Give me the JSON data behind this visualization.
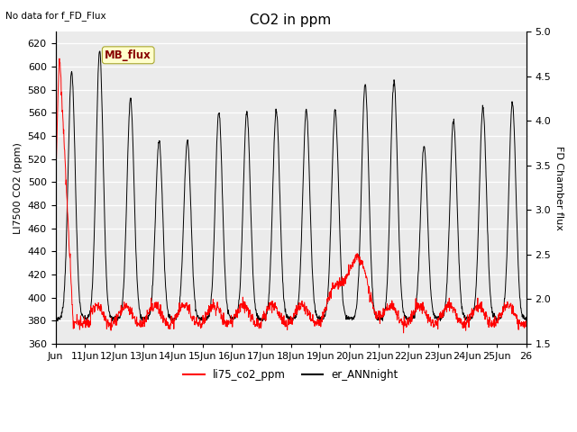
{
  "title": "CO2 in ppm",
  "no_data_text": "No data for f_FD_Flux",
  "ylabel_left": "LI7500 CO2 (ppm)",
  "ylabel_right": "FD Chamber flux",
  "ylim_left": [
    360,
    630
  ],
  "ylim_right": [
    1.5,
    5.0
  ],
  "yticks_left": [
    360,
    380,
    400,
    420,
    440,
    460,
    480,
    500,
    520,
    540,
    560,
    580,
    600,
    620
  ],
  "yticks_right": [
    1.5,
    2.0,
    2.5,
    3.0,
    3.5,
    4.0,
    4.5,
    5.0
  ],
  "xtick_labels": [
    "Jun",
    "11Jun",
    "12Jun",
    "13Jun",
    "14Jun",
    "15Jun",
    "16Jun",
    "17Jun",
    "18Jun",
    "19Jun",
    "20Jun",
    "21Jun",
    "22Jun",
    "23Jun",
    "24Jun",
    "25Jun",
    "26"
  ],
  "legend_entries": [
    "li75_co2_ppm",
    "er_ANNnight"
  ],
  "legend_colors": [
    "red",
    "black"
  ],
  "annotation_box": "MB_flux",
  "annotation_box_color": "#ffffcc",
  "annotation_box_text_color": "#880000",
  "plot_bg_color": "#ebebeb",
  "grid_color": "white",
  "title_fontsize": 11,
  "label_fontsize": 8,
  "tick_fontsize": 8,
  "figsize": [
    6.4,
    4.8
  ],
  "dpi": 100
}
